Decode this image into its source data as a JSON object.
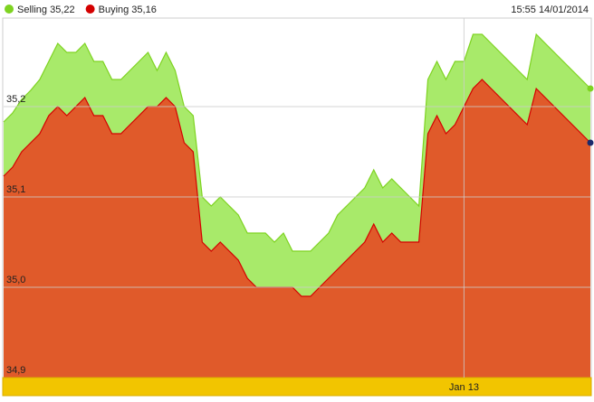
{
  "chart_data": {
    "type": "area",
    "timestamp": "15:55 14/01/2014",
    "categories": [
      null,
      null,
      null,
      null,
      null,
      null,
      null,
      null,
      null,
      null,
      null,
      null,
      null,
      null,
      null,
      null,
      null,
      null,
      null,
      null,
      null,
      null,
      null,
      null,
      null,
      null,
      null,
      null,
      null,
      null,
      null,
      null,
      null,
      null,
      null,
      null,
      null,
      null,
      null,
      null,
      null,
      null,
      null,
      null,
      null,
      null,
      null,
      null,
      null,
      null,
      null,
      "Jan 13",
      null,
      null,
      null,
      null,
      null,
      null,
      null,
      null,
      null,
      null,
      null,
      null,
      null,
      null
    ],
    "series": [
      {
        "name": "Selling 35,22",
        "color": "#7ed321",
        "fill": "#a8ea6a",
        "values": [
          35.183,
          35.193,
          35.208,
          35.218,
          35.23,
          35.25,
          35.27,
          35.26,
          35.26,
          35.27,
          35.25,
          35.25,
          35.23,
          35.23,
          35.24,
          35.25,
          35.26,
          35.24,
          35.26,
          35.24,
          35.2,
          35.19,
          35.1,
          35.09,
          35.1,
          35.09,
          35.08,
          35.06,
          35.06,
          35.06,
          35.05,
          35.06,
          35.04,
          35.04,
          35.04,
          35.05,
          35.06,
          35.08,
          35.09,
          35.1,
          35.11,
          35.13,
          35.11,
          35.12,
          35.11,
          35.1,
          35.09,
          35.23,
          35.25,
          35.23,
          35.25,
          35.25,
          35.28,
          35.28,
          35.27,
          35.26,
          35.25,
          35.24,
          35.23,
          35.28,
          35.27,
          35.26,
          35.25,
          35.24,
          35.23,
          35.22
        ]
      },
      {
        "name": "Buying 35,16",
        "color": "#d40000",
        "fill": "#e05a2a",
        "end_color": "#1a2a6c",
        "values": [
          35.123,
          35.133,
          35.15,
          35.16,
          35.17,
          35.19,
          35.2,
          35.19,
          35.2,
          35.21,
          35.19,
          35.19,
          35.17,
          35.17,
          35.18,
          35.19,
          35.2,
          35.2,
          35.21,
          35.2,
          35.16,
          35.15,
          35.05,
          35.04,
          35.05,
          35.04,
          35.03,
          35.01,
          35.0,
          35.0,
          35.0,
          35.0,
          35.0,
          34.99,
          34.99,
          35.0,
          35.01,
          35.02,
          35.03,
          35.04,
          35.05,
          35.07,
          35.05,
          35.06,
          35.05,
          35.05,
          35.05,
          35.17,
          35.19,
          35.17,
          35.18,
          35.2,
          35.22,
          35.23,
          35.22,
          35.21,
          35.2,
          35.19,
          35.18,
          35.22,
          35.21,
          35.2,
          35.19,
          35.18,
          35.17,
          35.16
        ]
      }
    ],
    "ylim": [
      34.9,
      35.298
    ],
    "yticks": [
      {
        "value": 34.9,
        "label": "34,9"
      },
      {
        "value": 35.0,
        "label": "35,0"
      },
      {
        "value": 35.1,
        "label": "35,1"
      },
      {
        "value": 35.2,
        "label": "35,2"
      }
    ],
    "grid": true
  }
}
